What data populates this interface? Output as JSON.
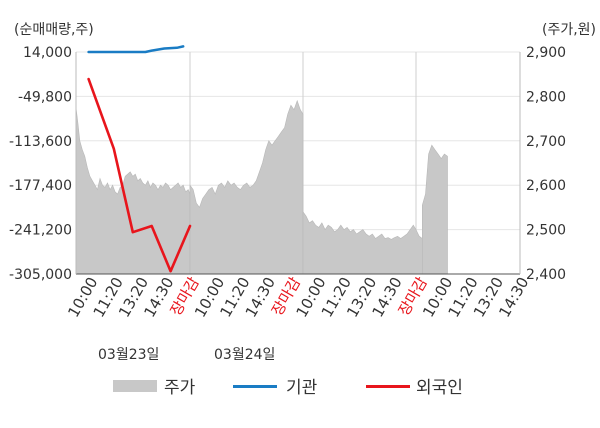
{
  "chart_data": {
    "type": "line",
    "left_axis_unit": "(순매매량,주)",
    "right_axis_unit": "(주가,원)",
    "left_ticks": [
      "14,000",
      "-49,800",
      "-113,600",
      "-177,400",
      "-241,200",
      "-305,000"
    ],
    "right_ticks": [
      "2,900",
      "2,800",
      "2,700",
      "2,600",
      "2,500",
      "2,400"
    ],
    "ylim_left": [
      -305000,
      14000
    ],
    "ylim_right": [
      2400,
      2900
    ],
    "x_tick_labels": [
      "10:00",
      "11:20",
      "13:20",
      "14:30",
      "장마감",
      "10:00",
      "11:20",
      "14:30",
      "장마감",
      "10:00",
      "11:20",
      "13:20",
      "14:30",
      "장마감",
      "10:00",
      "11:20",
      "13:20",
      "14:30"
    ],
    "x_tick_closing": [
      false,
      false,
      false,
      false,
      true,
      false,
      false,
      false,
      true,
      false,
      false,
      false,
      false,
      true,
      false,
      false,
      false,
      false
    ],
    "x_tick_color_closing": "#e8151c",
    "dates": [
      "03월23일",
      "03월24일"
    ],
    "legend": [
      {
        "label": "주가",
        "color": "#c8c8c8"
      },
      {
        "label": "기관",
        "color": "#1a7cc4"
      },
      {
        "label": "외국인",
        "color": "#e8151c"
      }
    ],
    "series": [
      {
        "name": "주가",
        "axis": "right",
        "color": "#c8c8c8",
        "style": "area",
        "segments": [
          [
            [
              0,
              2775
            ],
            [
              0.3,
              2740
            ],
            [
              0.6,
              2700
            ],
            [
              1,
              2680
            ],
            [
              1.4,
              2665
            ],
            [
              1.8,
              2640
            ],
            [
              2.2,
              2620
            ],
            [
              2.6,
              2610
            ],
            [
              3,
              2600
            ],
            [
              3.4,
              2590
            ],
            [
              3.8,
              2615
            ],
            [
              4.2,
              2600
            ],
            [
              4.6,
              2595
            ],
            [
              5,
              2605
            ],
            [
              5.4,
              2590
            ],
            [
              5.8,
              2600
            ],
            [
              6.2,
              2585
            ],
            [
              6.6,
              2580
            ],
            [
              7,
              2595
            ],
            [
              7.4,
              2600
            ],
            [
              7.8,
              2620
            ],
            [
              8.2,
              2625
            ],
            [
              8.6,
              2630
            ],
            [
              9,
              2620
            ],
            [
              9.4,
              2625
            ],
            [
              9.8,
              2610
            ],
            [
              10.2,
              2615
            ],
            [
              10.6,
              2605
            ],
            [
              11,
              2600
            ],
            [
              11.4,
              2610
            ],
            [
              11.8,
              2595
            ],
            [
              12.2,
              2605
            ],
            [
              12.6,
              2600
            ],
            [
              13,
              2590
            ],
            [
              13.4,
              2600
            ],
            [
              13.8,
              2595
            ],
            [
              14.2,
              2605
            ],
            [
              14.6,
              2600
            ],
            [
              15,
              2590
            ],
            [
              15.4,
              2595
            ],
            [
              15.8,
              2600
            ],
            [
              16.2,
              2605
            ],
            [
              16.6,
              2595
            ],
            [
              17,
              2600
            ],
            [
              17.4,
              2585
            ],
            [
              17.8,
              2590
            ],
            [
              18,
              2580
            ]
          ],
          [
            [
              18,
              2600
            ],
            [
              18.5,
              2590
            ],
            [
              19,
              2560
            ],
            [
              19.5,
              2550
            ],
            [
              20,
              2570
            ],
            [
              20.5,
              2580
            ],
            [
              21,
              2590
            ],
            [
              21.5,
              2595
            ],
            [
              22,
              2580
            ],
            [
              22.5,
              2600
            ],
            [
              23,
              2605
            ],
            [
              23.5,
              2595
            ],
            [
              24,
              2610
            ],
            [
              24.5,
              2600
            ],
            [
              25,
              2605
            ],
            [
              25.5,
              2595
            ],
            [
              26,
              2590
            ],
            [
              26.5,
              2600
            ],
            [
              27,
              2605
            ],
            [
              27.5,
              2595
            ],
            [
              28,
              2600
            ],
            [
              28.5,
              2610
            ],
            [
              29,
              2630
            ],
            [
              29.5,
              2650
            ],
            [
              30,
              2680
            ],
            [
              30.5,
              2700
            ],
            [
              31,
              2690
            ],
            [
              31.5,
              2700
            ],
            [
              32,
              2710
            ],
            [
              32.5,
              2720
            ],
            [
              33,
              2730
            ],
            [
              33.5,
              2760
            ],
            [
              34,
              2780
            ],
            [
              34.5,
              2770
            ],
            [
              35,
              2790
            ],
            [
              35.5,
              2770
            ],
            [
              36,
              2760
            ]
          ],
          [
            [
              36,
              2540
            ],
            [
              36.5,
              2530
            ],
            [
              37,
              2515
            ],
            [
              37.5,
              2520
            ],
            [
              38,
              2510
            ],
            [
              38.5,
              2505
            ],
            [
              39,
              2515
            ],
            [
              39.5,
              2500
            ],
            [
              40,
              2510
            ],
            [
              40.5,
              2505
            ],
            [
              41,
              2495
            ],
            [
              41.5,
              2500
            ],
            [
              42,
              2510
            ],
            [
              42.5,
              2500
            ],
            [
              43,
              2505
            ],
            [
              43.5,
              2495
            ],
            [
              44,
              2500
            ],
            [
              44.5,
              2490
            ],
            [
              45,
              2495
            ],
            [
              45.5,
              2500
            ],
            [
              46,
              2490
            ],
            [
              46.5,
              2485
            ],
            [
              47,
              2490
            ],
            [
              47.5,
              2480
            ],
            [
              48,
              2485
            ],
            [
              48.5,
              2490
            ],
            [
              49,
              2480
            ],
            [
              49.5,
              2482
            ],
            [
              50,
              2478
            ],
            [
              50.5,
              2482
            ],
            [
              51,
              2485
            ],
            [
              51.5,
              2480
            ],
            [
              52,
              2485
            ],
            [
              52.5,
              2490
            ],
            [
              53,
              2500
            ],
            [
              53.5,
              2510
            ],
            [
              54,
              2500
            ],
            [
              54.5,
              2485
            ],
            [
              55,
              2480
            ]
          ],
          [
            [
              55,
              2555
            ],
            [
              55.5,
              2580
            ],
            [
              56,
              2670
            ],
            [
              56.5,
              2690
            ],
            [
              57,
              2680
            ],
            [
              57.5,
              2670
            ],
            [
              58,
              2660
            ],
            [
              58.5,
              2670
            ],
            [
              59,
              2665
            ]
          ]
        ]
      },
      {
        "name": "기관",
        "axis": "left",
        "color": "#1a7cc4",
        "style": "line",
        "points": [
          [
            2,
            14000
          ],
          [
            6,
            14000
          ],
          [
            9,
            14000
          ],
          [
            11,
            14000
          ],
          [
            12,
            16000
          ],
          [
            14,
            19000
          ],
          [
            16,
            20000
          ],
          [
            17,
            22000
          ]
        ]
      },
      {
        "name": "외국인",
        "axis": "left",
        "color": "#e8151c",
        "style": "line",
        "points": [
          [
            2,
            -25000
          ],
          [
            6,
            -125000
          ],
          [
            9,
            -245000
          ],
          [
            12,
            -236000
          ],
          [
            15,
            -301000
          ],
          [
            18,
            -236000
          ]
        ]
      }
    ],
    "grid": true
  }
}
